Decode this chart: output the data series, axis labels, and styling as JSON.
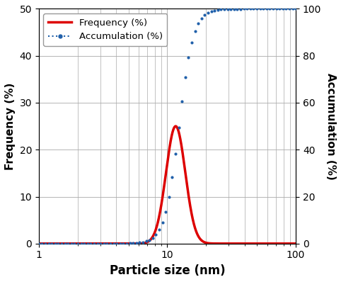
{
  "xlabel": "Particle size (nm)",
  "ylabel_left": "Frequency (%)",
  "ylabel_right": "Accumulation (%)",
  "xlim": [
    1,
    100
  ],
  "ylim_left": [
    0,
    50
  ],
  "ylim_right": [
    0,
    100
  ],
  "yticks_left": [
    0,
    10,
    20,
    30,
    40,
    50
  ],
  "yticks_right": [
    0,
    20,
    40,
    60,
    80,
    100
  ],
  "freq_color": "#dd0000",
  "accum_color": "#2060aa",
  "legend_freq": "Frequency (%)",
  "legend_accum": "Accumulation (%)",
  "freq_peak_log": 1.065,
  "freq_sigma_log": 0.075,
  "freq_amplitude": 25.0,
  "accum_midpoint_log": 1.09,
  "accum_steepness": 18.0,
  "background_color": "#ffffff",
  "grid_color": "#aaaaaa",
  "xlabel_fontsize": 12,
  "ylabel_fontsize": 11
}
